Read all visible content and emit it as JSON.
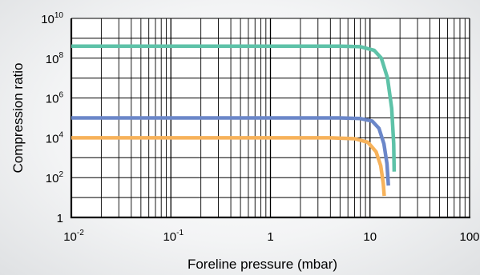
{
  "chart_data": {
    "type": "line",
    "title": "",
    "xlabel": "Foreline pressure (mbar)",
    "ylabel": "Compression ratio",
    "x_scale": "log",
    "y_scale": "log",
    "xlim": [
      0.01,
      100
    ],
    "ylim": [
      1,
      10000000000
    ],
    "grid": true,
    "legend": "none",
    "x_ticks": [
      {
        "value": 0.01,
        "base": "10",
        "exp": "-2"
      },
      {
        "value": 0.1,
        "base": "10",
        "exp": "-1"
      },
      {
        "value": 1,
        "base": "1",
        "exp": ""
      },
      {
        "value": 10,
        "base": "10",
        "exp": ""
      },
      {
        "value": 100,
        "base": "100",
        "exp": ""
      }
    ],
    "y_ticks": [
      {
        "value": 1,
        "base": "1",
        "exp": ""
      },
      {
        "value": 100,
        "base": "10",
        "exp": "2"
      },
      {
        "value": 10000,
        "base": "10",
        "exp": "4"
      },
      {
        "value": 1000000,
        "base": "10",
        "exp": "6"
      },
      {
        "value": 100000000,
        "base": "10",
        "exp": "8"
      },
      {
        "value": 10000000000,
        "base": "10",
        "exp": "10"
      }
    ],
    "series": [
      {
        "color": "#5ec2a8",
        "points": [
          [
            0.01,
            400000000
          ],
          [
            5,
            400000000
          ],
          [
            8,
            380000000
          ],
          [
            11,
            250000000
          ],
          [
            13,
            100000000
          ],
          [
            15,
            10000000
          ],
          [
            16.5,
            300000
          ],
          [
            17.3,
            5000
          ],
          [
            17.5,
            200
          ]
        ]
      },
      {
        "color": "#6b87c9",
        "points": [
          [
            0.01,
            100000
          ],
          [
            5,
            100000
          ],
          [
            8,
            93000
          ],
          [
            10.5,
            70000
          ],
          [
            12.3,
            30000
          ],
          [
            13.8,
            5000
          ],
          [
            14.8,
            500
          ],
          [
            15.3,
            40
          ]
        ]
      },
      {
        "color": "#f7b25a",
        "points": [
          [
            0.01,
            10000
          ],
          [
            4,
            10000
          ],
          [
            7,
            9000
          ],
          [
            9.5,
            6000
          ],
          [
            11.5,
            2000
          ],
          [
            12.8,
            400
          ],
          [
            13.6,
            50
          ],
          [
            13.9,
            12
          ]
        ]
      }
    ]
  }
}
